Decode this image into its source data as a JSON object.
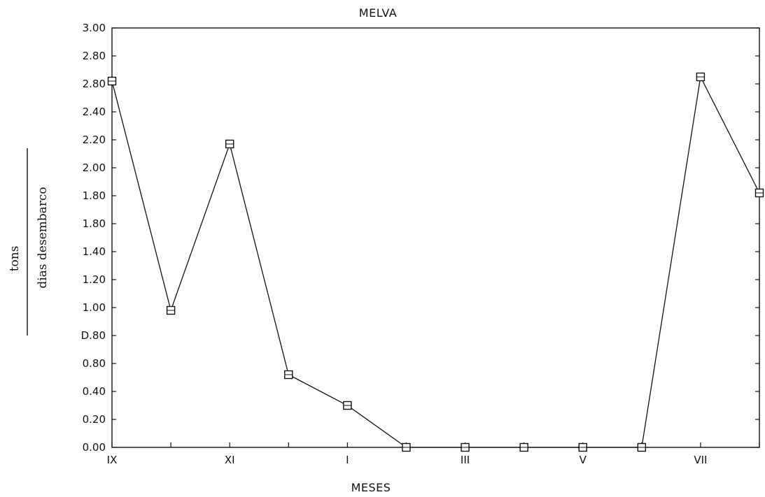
{
  "chart_data": {
    "type": "line",
    "title": "MELVA",
    "xlabel": "MESES",
    "ylabel_numerator": "tons",
    "ylabel_denominator": "dias desembarco",
    "y_tick_labels": [
      "0.00",
      "0.20",
      "0.40",
      "0.80",
      "D.80",
      "1.00",
      "1.20",
      "1.40",
      "1.80",
      "1.80",
      "2.00",
      "2.20",
      "2.40",
      "2.80",
      "2.80",
      "3.00"
    ],
    "ylim": [
      0,
      3.0
    ],
    "x_tick_labels": [
      "IX",
      "XI",
      "I",
      "III",
      "V",
      "VII"
    ],
    "x_tick_positions": [
      0,
      2,
      4,
      6,
      8,
      10
    ],
    "xlim": [
      0,
      11
    ],
    "grid": false,
    "marker": "square",
    "series": [
      {
        "x": [
          0,
          1,
          2,
          3,
          4,
          5,
          6,
          7,
          8,
          9,
          10,
          11
        ],
        "values": [
          2.62,
          0.98,
          2.17,
          0.52,
          0.3,
          0.0,
          0.0,
          0.0,
          0.0,
          0.0,
          2.65,
          1.82
        ]
      }
    ],
    "color": "#111111"
  }
}
